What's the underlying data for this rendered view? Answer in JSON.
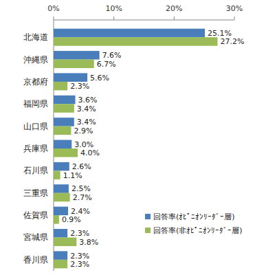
{
  "chart_data": {
    "type": "bar",
    "orientation": "horizontal",
    "categories": [
      "北海道",
      "沖縄県",
      "京都府",
      "福岡県",
      "山口県",
      "兵庫県",
      "石川県",
      "三重県",
      "佐賀県",
      "宮城県",
      "香川県"
    ],
    "series": [
      {
        "name": "回答率(ｵﾋﾟﾆｵﾝﾘｰﾀﾞｰ層)",
        "color": "#4a7ebb",
        "values": [
          25.1,
          7.6,
          5.6,
          3.6,
          3.4,
          3.0,
          2.6,
          2.5,
          2.4,
          2.3,
          2.3
        ],
        "value_labels": [
          "25.1%",
          "7.6%",
          "5.6%",
          "3.6%",
          "3.4%",
          "3.0%",
          "2.6%",
          "2.5%",
          "2.4%",
          "2.3%",
          "2.3%"
        ]
      },
      {
        "name": "回答率(非ｵﾋﾟﾆｵﾝﾘｰﾀﾞｰ層)",
        "color": "#9bbb59",
        "values": [
          27.2,
          6.7,
          2.3,
          3.4,
          2.9,
          4.0,
          1.1,
          2.7,
          0.9,
          3.8,
          2.3
        ],
        "value_labels": [
          "27.2%",
          "6.7%",
          "2.3%",
          "3.4%",
          "2.9%",
          "4.0%",
          "1.1%",
          "2.7%",
          "0.9%",
          "3.8%",
          "2.3%"
        ]
      }
    ],
    "xlim": [
      0,
      30
    ],
    "xticks": [
      {
        "value": 0,
        "label": "0%"
      },
      {
        "value": 10,
        "label": "10%"
      },
      {
        "value": 20,
        "label": "20%"
      },
      {
        "value": 30,
        "label": "30%"
      }
    ],
    "grid": false,
    "legend": "lower right",
    "data_labels": true
  }
}
